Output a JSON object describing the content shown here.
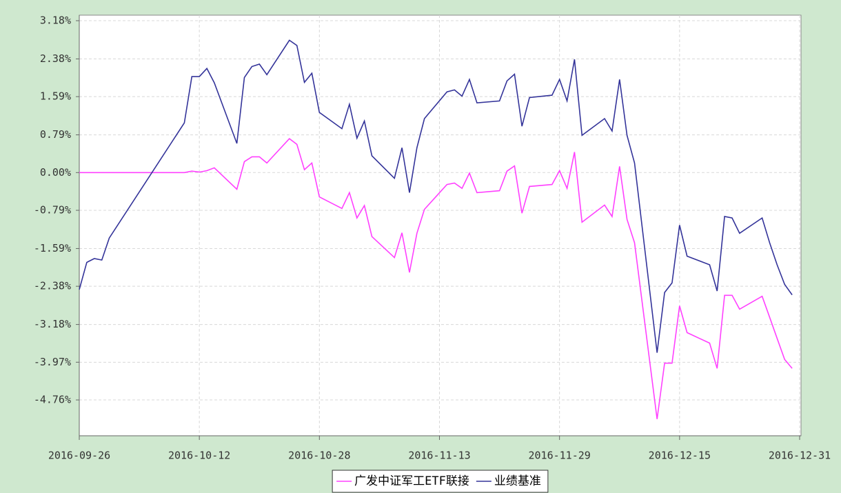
{
  "chart_data": {
    "type": "line",
    "x": [
      "2016-09-26",
      "2016-09-27",
      "2016-09-28",
      "2016-09-29",
      "2016-09-30",
      "2016-10-10",
      "2016-10-11",
      "2016-10-12",
      "2016-10-13",
      "2016-10-14",
      "2016-10-17",
      "2016-10-18",
      "2016-10-19",
      "2016-10-20",
      "2016-10-21",
      "2016-10-24",
      "2016-10-25",
      "2016-10-26",
      "2016-10-27",
      "2016-10-28",
      "2016-10-31",
      "2016-11-01",
      "2016-11-02",
      "2016-11-03",
      "2016-11-04",
      "2016-11-07",
      "2016-11-08",
      "2016-11-09",
      "2016-11-10",
      "2016-11-11",
      "2016-11-14",
      "2016-11-15",
      "2016-11-16",
      "2016-11-17",
      "2016-11-18",
      "2016-11-21",
      "2016-11-22",
      "2016-11-23",
      "2016-11-24",
      "2016-11-25",
      "2016-11-28",
      "2016-11-29",
      "2016-11-30",
      "2016-12-01",
      "2016-12-02",
      "2016-12-05",
      "2016-12-06",
      "2016-12-07",
      "2016-12-08",
      "2016-12-09",
      "2016-12-12",
      "2016-12-13",
      "2016-12-14",
      "2016-12-15",
      "2016-12-16",
      "2016-12-19",
      "2016-12-20",
      "2016-12-21",
      "2016-12-22",
      "2016-12-23",
      "2016-12-26",
      "2016-12-27",
      "2016-12-28",
      "2016-12-29",
      "2016-12-30"
    ],
    "series": [
      {
        "name": "广发中证军工ETF联接",
        "color": "#ff40ff",
        "values": [
          0,
          0,
          0,
          0,
          0,
          0,
          0.03,
          0.01,
          0.04,
          0.1,
          -0.35,
          0.23,
          0.33,
          0.33,
          0.2,
          0.71,
          0.59,
          0.06,
          0.2,
          -0.51,
          -0.75,
          -0.42,
          -0.95,
          -0.69,
          -1.34,
          -1.78,
          -1.26,
          -2.09,
          -1.27,
          -0.77,
          -0.25,
          -0.22,
          -0.33,
          -0.01,
          -0.42,
          -0.38,
          0.03,
          0.14,
          -0.85,
          -0.29,
          -0.25,
          0.04,
          -0.33,
          0.43,
          -1.04,
          -0.68,
          -0.92,
          0.13,
          -0.98,
          -1.47,
          -5.16,
          -3.99,
          -3.99,
          -2.79,
          -3.35,
          -3.57,
          -4.1,
          -2.57,
          -2.57,
          -2.86,
          -2.59,
          -3.03,
          -3.47,
          -3.91,
          -4.1
        ]
      },
      {
        "name": "业绩基准",
        "color": "#333399",
        "values": [
          -2.45,
          -1.88,
          -1.8,
          -1.83,
          -1.37,
          1.04,
          2.01,
          2.01,
          2.18,
          1.88,
          0.61,
          1.99,
          2.22,
          2.27,
          2.05,
          2.77,
          2.66,
          1.89,
          2.08,
          1.26,
          0.92,
          1.43,
          0.72,
          1.08,
          0.35,
          -0.12,
          0.52,
          -0.42,
          0.52,
          1.13,
          1.69,
          1.73,
          1.6,
          1.95,
          1.46,
          1.5,
          1.92,
          2.06,
          0.97,
          1.57,
          1.62,
          1.95,
          1.5,
          2.37,
          0.78,
          1.13,
          0.87,
          1.95,
          0.78,
          0.2,
          -3.77,
          -2.51,
          -2.31,
          -1.1,
          -1.75,
          -1.93,
          -2.48,
          -0.92,
          -0.95,
          -1.27,
          -0.95,
          -1.47,
          -1.93,
          -2.34,
          -2.56
        ]
      }
    ],
    "xlim": [
      "2016-09-26",
      "2016-12-31"
    ],
    "xticks": [
      "2016-09-26",
      "2016-10-12",
      "2016-10-28",
      "2016-11-13",
      "2016-11-29",
      "2016-12-15",
      "2016-12-31"
    ],
    "ylim": [
      -5.51,
      3.18
    ],
    "yticks": [
      {
        "value": 3.18,
        "label": "3.18%"
      },
      {
        "value": 2.38,
        "label": "2.38%"
      },
      {
        "value": 1.59,
        "label": "1.59%"
      },
      {
        "value": 0.79,
        "label": "0.79%"
      },
      {
        "value": 0,
        "label": "0.00%"
      },
      {
        "value": -0.79,
        "label": "-0.79%"
      },
      {
        "value": -1.59,
        "label": "-1.59%"
      },
      {
        "value": -2.38,
        "label": "-2.38%"
      },
      {
        "value": -3.18,
        "label": "-3.18%"
      },
      {
        "value": -3.97,
        "label": "-3.97%"
      },
      {
        "value": -4.76,
        "label": "-4.76%"
      }
    ],
    "grid": true,
    "legend": "bottom"
  }
}
